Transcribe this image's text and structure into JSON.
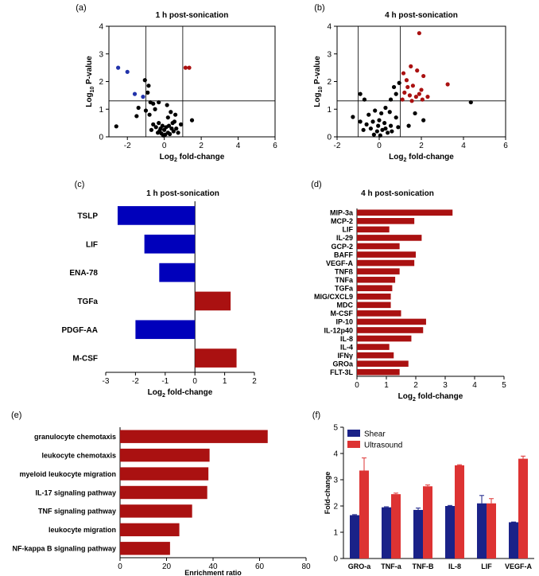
{
  "chart_data": [
    {
      "panel": "(a)",
      "type": "scatter",
      "title": "1 h post-sonication",
      "xlabel_main": "Log",
      "xlabel_sub": "2",
      "xlabel_rest": " fold-change",
      "ylabel_main": "Log",
      "ylabel_sub": "10",
      "ylabel_rest": " P-value",
      "xlim": [
        -3,
        6
      ],
      "ylim": [
        0,
        4
      ],
      "xticks": [
        -2,
        0,
        2,
        4,
        6
      ],
      "yticks": [
        0,
        1,
        2,
        3,
        4
      ],
      "vlines": [
        -1,
        1
      ],
      "hline": 1.3,
      "colors": {
        "down": "#2233aa",
        "up": "#aa1111",
        "ns": "#000000"
      },
      "points": [
        {
          "x": -2.5,
          "y": 2.5,
          "g": "down"
        },
        {
          "x": -2.0,
          "y": 2.35,
          "g": "down"
        },
        {
          "x": -1.6,
          "y": 1.55,
          "g": "down"
        },
        {
          "x": -1.15,
          "y": 1.45,
          "g": "down"
        },
        {
          "x": 1.15,
          "y": 2.5,
          "g": "up"
        },
        {
          "x": 1.35,
          "y": 2.5,
          "g": "up"
        },
        {
          "x": -2.6,
          "y": 0.38,
          "g": "ns"
        },
        {
          "x": -1.05,
          "y": 2.05,
          "g": "ns"
        },
        {
          "x": -0.85,
          "y": 1.85,
          "g": "ns"
        },
        {
          "x": -0.9,
          "y": 1.6,
          "g": "ns"
        },
        {
          "x": -0.75,
          "y": 1.25,
          "g": "ns"
        },
        {
          "x": -0.6,
          "y": 1.2,
          "g": "ns"
        },
        {
          "x": -1.4,
          "y": 1.05,
          "g": "ns"
        },
        {
          "x": -1.5,
          "y": 0.75,
          "g": "ns"
        },
        {
          "x": -1.0,
          "y": 0.95,
          "g": "ns"
        },
        {
          "x": -0.5,
          "y": 1.0,
          "g": "ns"
        },
        {
          "x": -0.3,
          "y": 1.25,
          "g": "ns"
        },
        {
          "x": 0.15,
          "y": 1.15,
          "g": "ns"
        },
        {
          "x": 0.35,
          "y": 0.9,
          "g": "ns"
        },
        {
          "x": -0.8,
          "y": 0.8,
          "g": "ns"
        },
        {
          "x": 0.2,
          "y": 0.7,
          "g": "ns"
        },
        {
          "x": 0.6,
          "y": 0.8,
          "g": "ns"
        },
        {
          "x": 0.55,
          "y": 0.55,
          "g": "ns"
        },
        {
          "x": 0.9,
          "y": 0.45,
          "g": "ns"
        },
        {
          "x": 1.5,
          "y": 0.6,
          "g": "ns"
        },
        {
          "x": -0.6,
          "y": 0.45,
          "g": "ns"
        },
        {
          "x": -0.45,
          "y": 0.35,
          "g": "ns"
        },
        {
          "x": -0.3,
          "y": 0.5,
          "g": "ns"
        },
        {
          "x": -0.2,
          "y": 0.3,
          "g": "ns"
        },
        {
          "x": -0.1,
          "y": 0.4,
          "g": "ns"
        },
        {
          "x": 0.0,
          "y": 0.25,
          "g": "ns"
        },
        {
          "x": 0.1,
          "y": 0.35,
          "g": "ns"
        },
        {
          "x": 0.25,
          "y": 0.4,
          "g": "ns"
        },
        {
          "x": 0.4,
          "y": 0.3,
          "g": "ns"
        },
        {
          "x": 0.5,
          "y": 0.2,
          "g": "ns"
        },
        {
          "x": -0.35,
          "y": 0.15,
          "g": "ns"
        },
        {
          "x": -0.15,
          "y": 0.12,
          "g": "ns"
        },
        {
          "x": 0.05,
          "y": 0.08,
          "g": "ns"
        },
        {
          "x": 0.2,
          "y": 0.15,
          "g": "ns"
        },
        {
          "x": -0.05,
          "y": 0.05,
          "g": "ns"
        },
        {
          "x": 0.3,
          "y": 0.1,
          "g": "ns"
        },
        {
          "x": -0.25,
          "y": 0.22,
          "g": "ns"
        },
        {
          "x": 0.65,
          "y": 0.3,
          "g": "ns"
        },
        {
          "x": 0.75,
          "y": 0.15,
          "g": "ns"
        },
        {
          "x": -0.7,
          "y": 0.25,
          "g": "ns"
        },
        {
          "x": 0.45,
          "y": 0.5,
          "g": "ns"
        }
      ]
    },
    {
      "panel": "(b)",
      "type": "scatter",
      "title": "4 h post-sonication",
      "xlabel_main": "Log",
      "xlabel_sub": "2",
      "xlabel_rest": " fold-change",
      "ylabel_main": "Log",
      "ylabel_sub": "10",
      "ylabel_rest": " P-value",
      "xlim": [
        -2,
        6
      ],
      "ylim": [
        0,
        4
      ],
      "xticks": [
        -2,
        0,
        2,
        4,
        6
      ],
      "yticks": [
        0,
        1,
        2,
        3,
        4
      ],
      "vlines": [
        -1,
        1
      ],
      "hline": 1.3,
      "colors": {
        "down": "#2233aa",
        "up": "#aa1111",
        "ns": "#000000"
      },
      "points": [
        {
          "x": 1.9,
          "y": 3.75,
          "g": "up"
        },
        {
          "x": 1.5,
          "y": 2.55,
          "g": "up"
        },
        {
          "x": 1.15,
          "y": 2.3,
          "g": "up"
        },
        {
          "x": 1.8,
          "y": 2.4,
          "g": "up"
        },
        {
          "x": 1.3,
          "y": 2.05,
          "g": "up"
        },
        {
          "x": 2.1,
          "y": 2.2,
          "g": "up"
        },
        {
          "x": 3.25,
          "y": 1.9,
          "g": "up"
        },
        {
          "x": 1.6,
          "y": 1.85,
          "g": "up"
        },
        {
          "x": 2.0,
          "y": 1.7,
          "g": "up"
        },
        {
          "x": 1.2,
          "y": 1.6,
          "g": "up"
        },
        {
          "x": 1.45,
          "y": 1.5,
          "g": "up"
        },
        {
          "x": 1.75,
          "y": 1.45,
          "g": "up"
        },
        {
          "x": 2.3,
          "y": 1.45,
          "g": "up"
        },
        {
          "x": 1.1,
          "y": 1.35,
          "g": "up"
        },
        {
          "x": 1.55,
          "y": 1.3,
          "g": "up"
        },
        {
          "x": 2.05,
          "y": 1.35,
          "g": "up"
        },
        {
          "x": 1.9,
          "y": 1.55,
          "g": "up"
        },
        {
          "x": 1.35,
          "y": 1.8,
          "g": "up"
        },
        {
          "x": 4.35,
          "y": 1.25,
          "g": "ns"
        },
        {
          "x": 0.95,
          "y": 1.95,
          "g": "ns"
        },
        {
          "x": 0.7,
          "y": 1.8,
          "g": "ns"
        },
        {
          "x": 0.8,
          "y": 1.55,
          "g": "ns"
        },
        {
          "x": 0.55,
          "y": 1.35,
          "g": "ns"
        },
        {
          "x": -0.9,
          "y": 1.55,
          "g": "ns"
        },
        {
          "x": -0.7,
          "y": 1.35,
          "g": "ns"
        },
        {
          "x": 1.7,
          "y": 0.85,
          "g": "ns"
        },
        {
          "x": 2.1,
          "y": 0.6,
          "g": "ns"
        },
        {
          "x": 1.4,
          "y": 0.4,
          "g": "ns"
        },
        {
          "x": 0.3,
          "y": 1.05,
          "g": "ns"
        },
        {
          "x": 0.5,
          "y": 0.9,
          "g": "ns"
        },
        {
          "x": 0.1,
          "y": 0.85,
          "g": "ns"
        },
        {
          "x": -0.2,
          "y": 0.95,
          "g": "ns"
        },
        {
          "x": -0.5,
          "y": 0.8,
          "g": "ns"
        },
        {
          "x": 0.8,
          "y": 0.7,
          "g": "ns"
        },
        {
          "x": -1.25,
          "y": 0.72,
          "g": "ns"
        },
        {
          "x": -0.9,
          "y": 0.55,
          "g": "ns"
        },
        {
          "x": -0.6,
          "y": 0.45,
          "g": "ns"
        },
        {
          "x": -0.3,
          "y": 0.55,
          "g": "ns"
        },
        {
          "x": 0.0,
          "y": 0.6,
          "g": "ns"
        },
        {
          "x": 0.25,
          "y": 0.5,
          "g": "ns"
        },
        {
          "x": 0.55,
          "y": 0.4,
          "g": "ns"
        },
        {
          "x": 0.9,
          "y": 0.35,
          "g": "ns"
        },
        {
          "x": -0.75,
          "y": 0.25,
          "g": "ns"
        },
        {
          "x": -0.4,
          "y": 0.3,
          "g": "ns"
        },
        {
          "x": -0.1,
          "y": 0.2,
          "g": "ns"
        },
        {
          "x": 0.15,
          "y": 0.25,
          "g": "ns"
        },
        {
          "x": 0.4,
          "y": 0.15,
          "g": "ns"
        },
        {
          "x": -0.25,
          "y": 0.08,
          "g": "ns"
        },
        {
          "x": 0.05,
          "y": 0.05,
          "g": "ns"
        },
        {
          "x": 0.3,
          "y": 0.3,
          "g": "ns"
        },
        {
          "x": 0.6,
          "y": 0.2,
          "g": "ns"
        },
        {
          "x": -0.05,
          "y": 0.4,
          "g": "ns"
        }
      ]
    },
    {
      "panel": "(c)",
      "type": "bar",
      "orientation": "horizontal",
      "title": "1 h post-sonication",
      "xlabel_main": "Log",
      "xlabel_sub": "2",
      "xlabel_rest": " fold-change",
      "xlim": [
        -3,
        2
      ],
      "xticks": [
        -3,
        -2,
        -1,
        0,
        1,
        2
      ],
      "categories": [
        "TSLP",
        "LIF",
        "ENA-78",
        "TGFa",
        "PDGF-AA",
        "M-CSF"
      ],
      "values": [
        -2.6,
        -1.7,
        -1.2,
        1.2,
        -2.0,
        1.4
      ],
      "colors": {
        "negative": "#0000bb",
        "positive": "#aa1111"
      }
    },
    {
      "panel": "(d)",
      "type": "bar",
      "orientation": "horizontal",
      "title": "4 h post-sonication",
      "xlabel_main": "Log",
      "xlabel_sub": "2",
      "xlabel_rest": " fold-change",
      "xlim": [
        0,
        5
      ],
      "xticks": [
        0,
        1,
        2,
        3,
        4,
        5
      ],
      "categories": [
        "MIP-3a",
        "MCP-2",
        "LIF",
        "IL-29",
        "GCP-2",
        "BAFF",
        "VEGF-A",
        "TNFß",
        "TNFa",
        "TGFa",
        "MIG/CXCL9",
        "MDC",
        "M-CSF",
        "IP-10",
        "IL-12p40",
        "IL-8",
        "IL-4",
        "IFNγ",
        "GROa",
        "FLT-3L"
      ],
      "values": [
        3.25,
        1.95,
        1.1,
        2.2,
        1.45,
        2.0,
        1.95,
        1.45,
        1.3,
        1.2,
        1.15,
        1.15,
        1.5,
        2.35,
        2.25,
        1.85,
        1.1,
        1.25,
        1.75,
        1.45
      ],
      "colors": {
        "positive": "#aa1111"
      }
    },
    {
      "panel": "(e)",
      "type": "bar",
      "orientation": "horizontal",
      "title": "",
      "xlabel": "Enrichment ratio",
      "xlim": [
        0,
        80
      ],
      "xticks": [
        0,
        20,
        40,
        60,
        80
      ],
      "categories": [
        "granulocyte chemotaxis",
        "leukocyte chemotaxis",
        "myeloid leukocyte migration",
        "IL-17 signaling pathway",
        "TNF signaling pathway",
        "leukocyte migration",
        "NF-kappa B signaling pathway"
      ],
      "values": [
        63.5,
        38.5,
        38.0,
        37.5,
        31.0,
        25.5,
        21.5
      ],
      "colors": {
        "bar": "#aa1111"
      }
    },
    {
      "panel": "(f)",
      "type": "bar",
      "orientation": "vertical",
      "title": "",
      "ylabel": "Fold-change",
      "ylim": [
        0,
        5
      ],
      "yticks": [
        0,
        1,
        2,
        3,
        4,
        5
      ],
      "categories": [
        "GRO-a",
        "TNF-a",
        "TNF-B",
        "IL-8",
        "LIF",
        "VEGF-A"
      ],
      "legend_position": "top-left",
      "series": [
        {
          "name": "Shear",
          "color": "#1a2288",
          "values": [
            1.65,
            1.95,
            1.85,
            2.0,
            2.1,
            1.38
          ],
          "errors": [
            0.02,
            0.02,
            0.07,
            0.02,
            0.3,
            0.01
          ]
        },
        {
          "name": "Ultrasound",
          "color": "#dd3333",
          "values": [
            3.35,
            2.45,
            2.75,
            3.55,
            2.1,
            3.8
          ],
          "errors": [
            0.48,
            0.04,
            0.05,
            0.02,
            0.18,
            0.1
          ]
        }
      ]
    }
  ]
}
